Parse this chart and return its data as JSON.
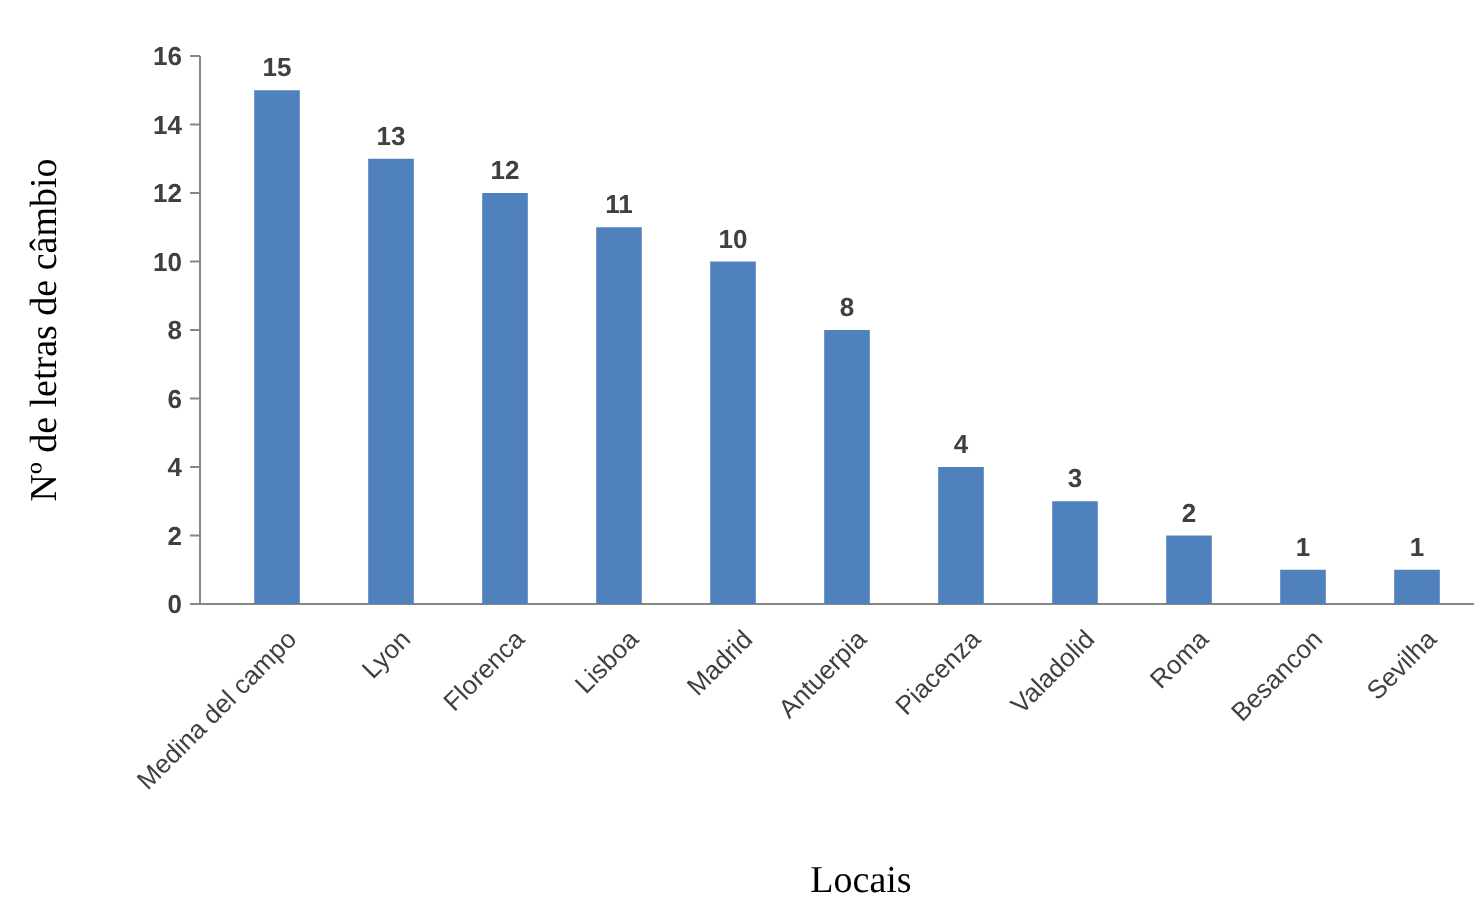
{
  "chart_data": {
    "type": "bar",
    "xlabel": "Locais",
    "ylabel": "Nº de letras de câmbio",
    "categories": [
      "Medina del campo",
      "Lyon",
      "Florenca",
      "Lisboa",
      "Madrid",
      "Antuerpia",
      "Piacenza",
      "Valadolid",
      "Roma",
      "Besancon",
      "Sevilha"
    ],
    "values": [
      15,
      13,
      12,
      11,
      10,
      8,
      4,
      3,
      2,
      1,
      1
    ],
    "color": "#4f81bd",
    "ylim": [
      0,
      16
    ],
    "yticks": [
      0,
      2,
      4,
      6,
      8,
      10,
      12,
      14,
      16
    ],
    "data_labels": true,
    "grid": false
  }
}
